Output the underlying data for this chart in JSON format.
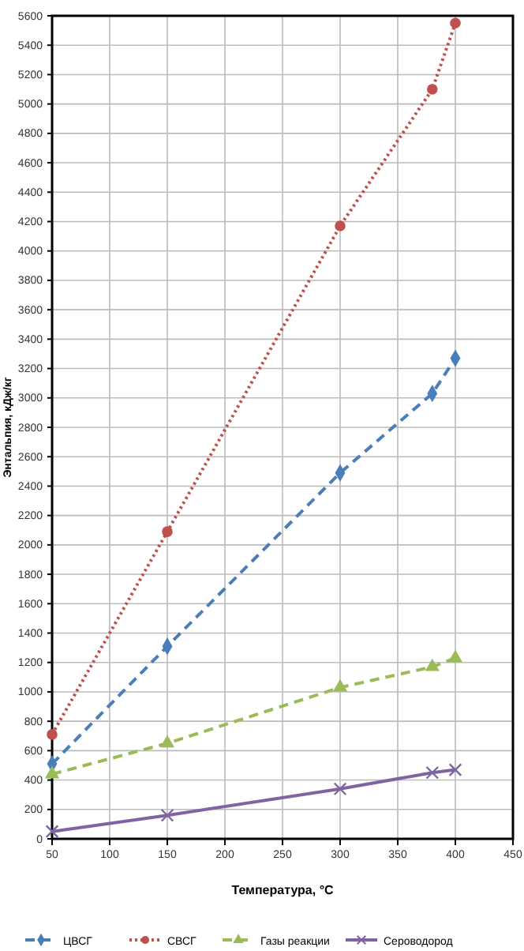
{
  "chart_data": {
    "type": "line",
    "xlabel": "Температура, °C",
    "ylabel": "Энтальпия, кДж/кг",
    "x": [
      50,
      150,
      300,
      380,
      400
    ],
    "series": [
      {
        "name": "ЦВСГ",
        "color": "#4a7ebb",
        "values": [
          510,
          1310,
          2490,
          3030,
          3270
        ],
        "marker": "diamond",
        "line_style": "dashed"
      },
      {
        "name": "СВСГ",
        "color": "#c0504d",
        "values": [
          710,
          2090,
          4170,
          5100,
          5550
        ],
        "marker": "circle",
        "line_style": "dotted"
      },
      {
        "name": "Газы реакции",
        "color": "#9bbb59",
        "values": [
          440,
          650,
          1030,
          1170,
          1230
        ],
        "marker": "triangle",
        "line_style": "dashed"
      },
      {
        "name": "Сероводород",
        "color": "#8064a2",
        "values": [
          50,
          160,
          340,
          450,
          470
        ],
        "marker": "cross",
        "line_style": "solid"
      }
    ],
    "xlim": [
      50,
      450
    ],
    "xticks": [
      50,
      100,
      150,
      200,
      250,
      300,
      350,
      400,
      450
    ],
    "ylim": [
      0,
      5600
    ],
    "yticks": [
      0,
      200,
      400,
      600,
      800,
      1000,
      1200,
      1400,
      1600,
      1800,
      2000,
      2200,
      2400,
      2600,
      2800,
      3000,
      3200,
      3400,
      3600,
      3800,
      4000,
      4200,
      4400,
      4600,
      4800,
      5000,
      5200,
      5400,
      5600
    ],
    "grid": true,
    "legend": "bottom"
  }
}
